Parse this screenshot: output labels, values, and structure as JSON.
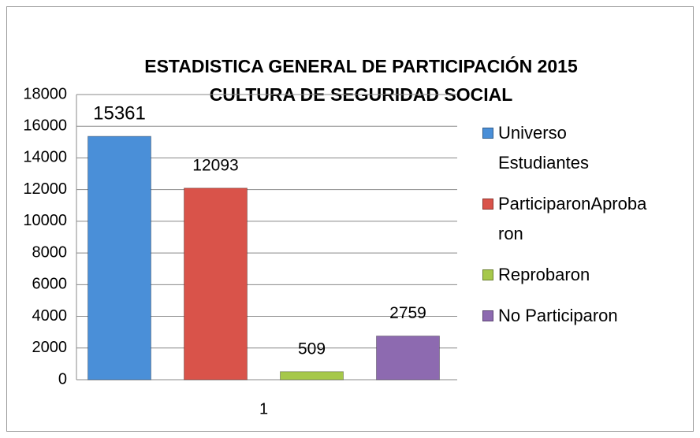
{
  "chart_data": {
    "type": "bar",
    "title": "ESTADISTICA GENERAL DE PARTICIPACIÓN 2015",
    "subtitle": "CULTURA DE SEGURIDAD SOCIAL",
    "categories": [
      "1"
    ],
    "series": [
      {
        "name": "Universo Estudiantes",
        "color": "#4a8fd8",
        "values": [
          15361
        ]
      },
      {
        "name": "ParticiparonAprobaron",
        "color": "#d9534a",
        "values": [
          12093
        ]
      },
      {
        "name": "Reprobaron",
        "color": "#a6c84a",
        "values": [
          509
        ]
      },
      {
        "name": "No Participaron",
        "color": "#8d6ab0",
        "values": [
          2759
        ]
      }
    ],
    "ylim": [
      0,
      18000
    ],
    "yticks": [
      0,
      2000,
      4000,
      6000,
      8000,
      10000,
      12000,
      14000,
      16000,
      18000
    ],
    "grid": true,
    "legend": "right"
  }
}
